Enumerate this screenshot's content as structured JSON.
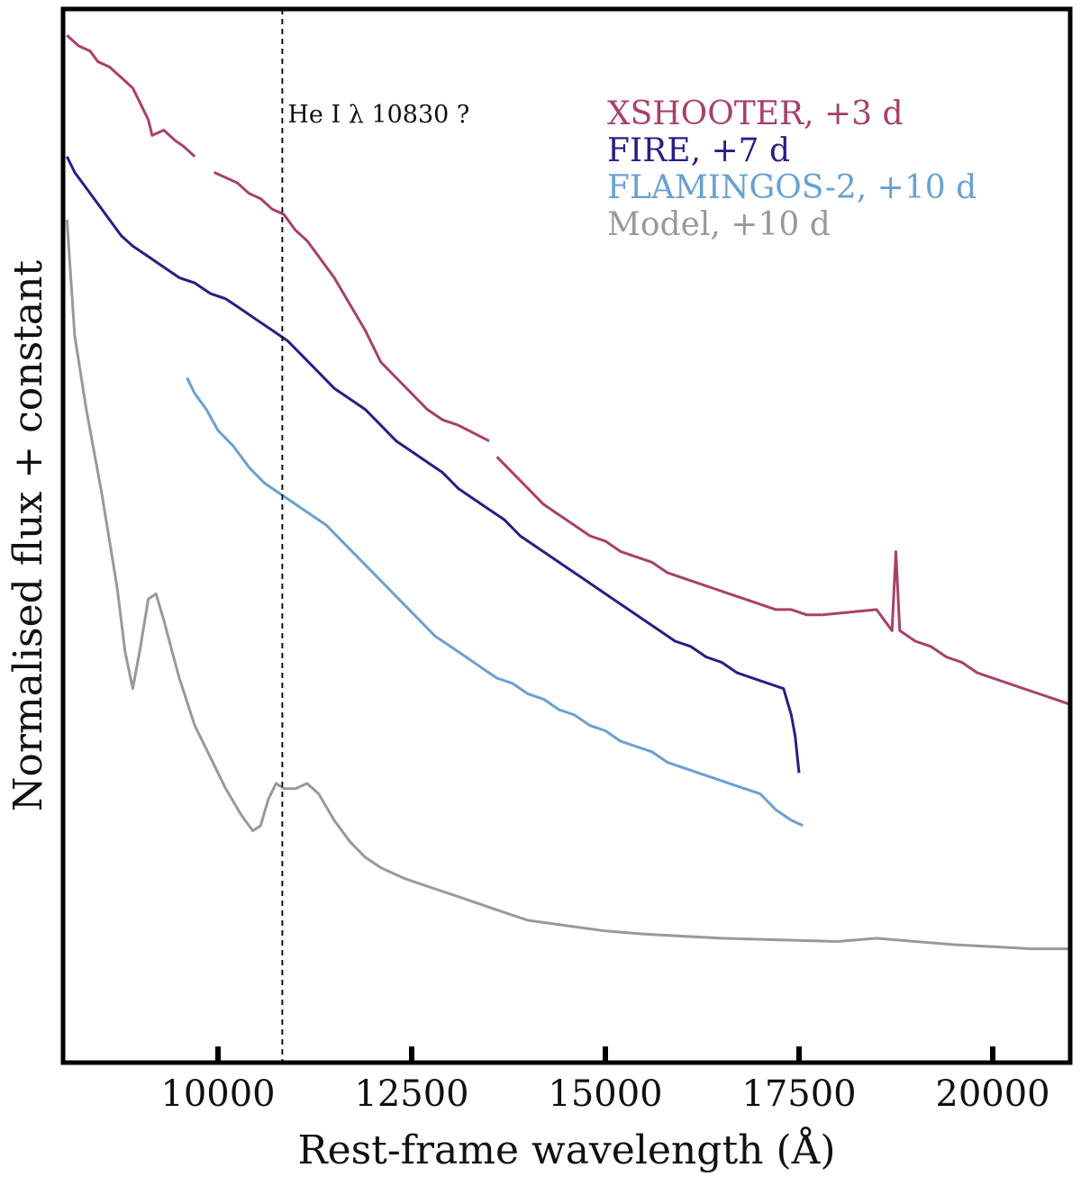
{
  "chart_data": {
    "type": "line",
    "xlabel": "Rest-frame wavelength (Å)",
    "ylabel": "Normalised flux + constant",
    "xlim": [
      8000,
      21000
    ],
    "ylim": [
      0,
      10
    ],
    "x_ticks": [
      10000,
      12500,
      15000,
      17500,
      20000
    ],
    "x_tick_labels": [
      "10000",
      "12500",
      "15000",
      "17500",
      "20000"
    ],
    "y_ticks_labeled": false,
    "grid": false,
    "legend_placement": "top-right",
    "annotation": {
      "text": "He I λ 10830 ?",
      "x": 10830,
      "style": "dashed vertical line"
    },
    "series": [
      {
        "name": "XSHOOTER, +3 d",
        "color": "#a8406a",
        "segments": [
          [
            [
              8050,
              9.75
            ],
            [
              8200,
              9.65
            ],
            [
              8350,
              9.6
            ],
            [
              8450,
              9.5
            ],
            [
              8600,
              9.45
            ],
            [
              8750,
              9.35
            ],
            [
              8900,
              9.25
            ],
            [
              9000,
              9.1
            ],
            [
              9100,
              8.95
            ],
            [
              9150,
              8.8
            ],
            [
              9300,
              8.85
            ],
            [
              9450,
              8.75
            ],
            [
              9550,
              8.7
            ],
            [
              9700,
              8.6
            ]
          ],
          [
            [
              9950,
              8.45
            ],
            [
              10100,
              8.4
            ],
            [
              10250,
              8.35
            ],
            [
              10400,
              8.25
            ],
            [
              10550,
              8.2
            ],
            [
              10700,
              8.1
            ],
            [
              10850,
              8.05
            ],
            [
              11000,
              7.9
            ],
            [
              11150,
              7.8
            ],
            [
              11300,
              7.65
            ],
            [
              11500,
              7.45
            ],
            [
              11700,
              7.2
            ],
            [
              11900,
              6.95
            ],
            [
              12100,
              6.65
            ],
            [
              12300,
              6.5
            ],
            [
              12500,
              6.35
            ],
            [
              12700,
              6.2
            ],
            [
              12900,
              6.1
            ],
            [
              13100,
              6.05
            ]
          ],
          [
            [
              13100,
              6.05
            ],
            [
              13500,
              5.9
            ]
          ],
          [
            [
              13600,
              5.75
            ],
            [
              13800,
              5.6
            ],
            [
              14000,
              5.45
            ],
            [
              14200,
              5.3
            ],
            [
              14400,
              5.2
            ],
            [
              14600,
              5.1
            ],
            [
              14800,
              5.0
            ],
            [
              15000,
              4.95
            ],
            [
              15200,
              4.85
            ],
            [
              15400,
              4.8
            ],
            [
              15600,
              4.75
            ],
            [
              15800,
              4.65
            ],
            [
              16000,
              4.6
            ],
            [
              16200,
              4.55
            ],
            [
              16400,
              4.5
            ],
            [
              16600,
              4.45
            ],
            [
              16800,
              4.4
            ],
            [
              17000,
              4.35
            ],
            [
              17200,
              4.3
            ],
            [
              17400,
              4.3
            ],
            [
              17600,
              4.25
            ],
            [
              17800,
              4.25
            ]
          ],
          [
            [
              17800,
              4.25
            ],
            [
              18500,
              4.3
            ],
            [
              18700,
              4.1
            ],
            [
              18750,
              4.85
            ],
            [
              18800,
              4.1
            ],
            [
              19000,
              4.0
            ],
            [
              19200,
              3.95
            ],
            [
              19400,
              3.85
            ],
            [
              19600,
              3.8
            ],
            [
              19800,
              3.7
            ],
            [
              20000,
              3.65
            ],
            [
              20200,
              3.6
            ],
            [
              20400,
              3.55
            ],
            [
              20600,
              3.5
            ],
            [
              20800,
              3.45
            ],
            [
              21000,
              3.4
            ]
          ]
        ]
      },
      {
        "name": "FIRE, +7 d",
        "color": "#2a1d85",
        "segments": [
          [
            [
              8050,
              8.6
            ],
            [
              8150,
              8.45
            ],
            [
              8300,
              8.3
            ],
            [
              8450,
              8.15
            ],
            [
              8600,
              8.0
            ],
            [
              8750,
              7.85
            ],
            [
              8900,
              7.75
            ],
            [
              9100,
              7.65
            ],
            [
              9300,
              7.55
            ],
            [
              9500,
              7.45
            ],
            [
              9700,
              7.4
            ],
            [
              9900,
              7.3
            ],
            [
              10100,
              7.25
            ],
            [
              10300,
              7.15
            ],
            [
              10500,
              7.05
            ],
            [
              10700,
              6.95
            ],
            [
              10900,
              6.85
            ],
            [
              11100,
              6.7
            ],
            [
              11300,
              6.55
            ],
            [
              11500,
              6.4
            ],
            [
              11700,
              6.3
            ],
            [
              11900,
              6.2
            ],
            [
              12100,
              6.05
            ],
            [
              12300,
              5.9
            ],
            [
              12500,
              5.8
            ],
            [
              12700,
              5.7
            ],
            [
              12900,
              5.6
            ],
            [
              13100,
              5.45
            ],
            [
              13300,
              5.35
            ],
            [
              13500,
              5.25
            ],
            [
              13700,
              5.15
            ],
            [
              13900,
              5.0
            ],
            [
              14100,
              4.9
            ],
            [
              14300,
              4.8
            ],
            [
              14500,
              4.7
            ],
            [
              14700,
              4.6
            ],
            [
              14900,
              4.5
            ],
            [
              15100,
              4.4
            ],
            [
              15300,
              4.3
            ],
            [
              15500,
              4.2
            ],
            [
              15700,
              4.1
            ],
            [
              15900,
              4.0
            ],
            [
              16100,
              3.95
            ],
            [
              16300,
              3.85
            ],
            [
              16500,
              3.8
            ],
            [
              16700,
              3.7
            ],
            [
              16900,
              3.65
            ],
            [
              17100,
              3.6
            ],
            [
              17300,
              3.55
            ],
            [
              17400,
              3.3
            ],
            [
              17450,
              3.1
            ],
            [
              17500,
              2.75
            ]
          ]
        ]
      },
      {
        "name": "FLAMINGOS-2, +10 d",
        "color": "#6aa0d2",
        "segments": [
          [
            [
              9600,
              6.5
            ],
            [
              9700,
              6.35
            ],
            [
              9850,
              6.2
            ],
            [
              10000,
              6.0
            ],
            [
              10200,
              5.85
            ],
            [
              10400,
              5.65
            ],
            [
              10600,
              5.5
            ],
            [
              10800,
              5.4
            ],
            [
              11000,
              5.3
            ],
            [
              11200,
              5.2
            ],
            [
              11400,
              5.1
            ],
            [
              11600,
              4.95
            ],
            [
              11800,
              4.8
            ],
            [
              12000,
              4.65
            ],
            [
              12200,
              4.5
            ],
            [
              12400,
              4.35
            ],
            [
              12600,
              4.2
            ],
            [
              12800,
              4.05
            ],
            [
              13000,
              3.95
            ],
            [
              13200,
              3.85
            ],
            [
              13400,
              3.75
            ],
            [
              13600,
              3.65
            ],
            [
              13800,
              3.6
            ],
            [
              14000,
              3.5
            ],
            [
              14200,
              3.45
            ],
            [
              14400,
              3.35
            ],
            [
              14600,
              3.3
            ],
            [
              14800,
              3.2
            ],
            [
              15000,
              3.15
            ],
            [
              15200,
              3.05
            ],
            [
              15400,
              3.0
            ],
            [
              15600,
              2.95
            ],
            [
              15800,
              2.85
            ],
            [
              16000,
              2.8
            ],
            [
              16200,
              2.75
            ],
            [
              16400,
              2.7
            ],
            [
              16600,
              2.65
            ],
            [
              16800,
              2.6
            ],
            [
              17000,
              2.55
            ],
            [
              17200,
              2.4
            ],
            [
              17400,
              2.3
            ],
            [
              17550,
              2.25
            ]
          ]
        ]
      },
      {
        "name": "Model, +10 d",
        "color": "#999999",
        "segments": [
          [
            [
              8050,
              8.0
            ],
            [
              8150,
              6.9
            ],
            [
              8300,
              6.2
            ],
            [
              8500,
              5.4
            ],
            [
              8700,
              4.5
            ],
            [
              8800,
              3.9
            ],
            [
              8900,
              3.55
            ],
            [
              9000,
              3.95
            ],
            [
              9100,
              4.4
            ],
            [
              9200,
              4.45
            ],
            [
              9300,
              4.2
            ],
            [
              9500,
              3.65
            ],
            [
              9700,
              3.2
            ],
            [
              9900,
              2.9
            ],
            [
              10100,
              2.6
            ],
            [
              10300,
              2.35
            ],
            [
              10450,
              2.2
            ],
            [
              10550,
              2.25
            ],
            [
              10650,
              2.5
            ],
            [
              10750,
              2.65
            ],
            [
              10850,
              2.6
            ],
            [
              11000,
              2.6
            ],
            [
              11150,
              2.65
            ],
            [
              11300,
              2.55
            ],
            [
              11500,
              2.3
            ],
            [
              11700,
              2.1
            ],
            [
              11900,
              1.95
            ],
            [
              12100,
              1.85
            ],
            [
              12400,
              1.75
            ],
            [
              12800,
              1.65
            ],
            [
              13200,
              1.55
            ],
            [
              13600,
              1.45
            ],
            [
              14000,
              1.35
            ],
            [
              14500,
              1.3
            ],
            [
              15000,
              1.25
            ],
            [
              15500,
              1.22
            ],
            [
              16000,
              1.2
            ],
            [
              16500,
              1.18
            ],
            [
              17000,
              1.17
            ],
            [
              17500,
              1.16
            ],
            [
              18000,
              1.15
            ],
            [
              18500,
              1.18
            ],
            [
              19000,
              1.15
            ],
            [
              19500,
              1.12
            ],
            [
              20000,
              1.1
            ],
            [
              20500,
              1.08
            ],
            [
              21000,
              1.08
            ]
          ]
        ]
      }
    ]
  }
}
